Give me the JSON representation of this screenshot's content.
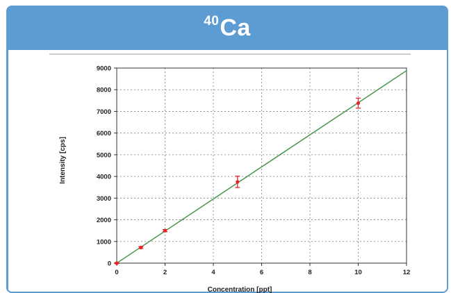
{
  "header": {
    "title_superscript": "40",
    "title_main": "Ca"
  },
  "colors": {
    "header_bg": "#5d9bd3",
    "fit_line": "#4f9a55",
    "points": "#e8242b",
    "grid": "#7a7a7a"
  },
  "chart_data": {
    "type": "scatter",
    "title": "",
    "xlabel": "Concentration [ppt]",
    "ylabel": "Intensity [cps]",
    "xlim": [
      0,
      12
    ],
    "ylim": [
      0,
      9000
    ],
    "xticks": [
      0,
      2,
      4,
      6,
      8,
      10,
      12
    ],
    "yticks": [
      0,
      1000,
      2000,
      3000,
      4000,
      5000,
      6000,
      7000,
      8000,
      9000
    ],
    "grid": true,
    "series": [
      {
        "points": [
          {
            "x": 0,
            "y": 0,
            "err": 20
          },
          {
            "x": 1,
            "y": 720,
            "err": 40
          },
          {
            "x": 2,
            "y": 1500,
            "err": 50
          },
          {
            "x": 5,
            "y": 3750,
            "err": 260
          },
          {
            "x": 10,
            "y": 7380,
            "err": 230
          }
        ]
      }
    ],
    "fit_line": {
      "slope": 740,
      "intercept": 0
    }
  }
}
